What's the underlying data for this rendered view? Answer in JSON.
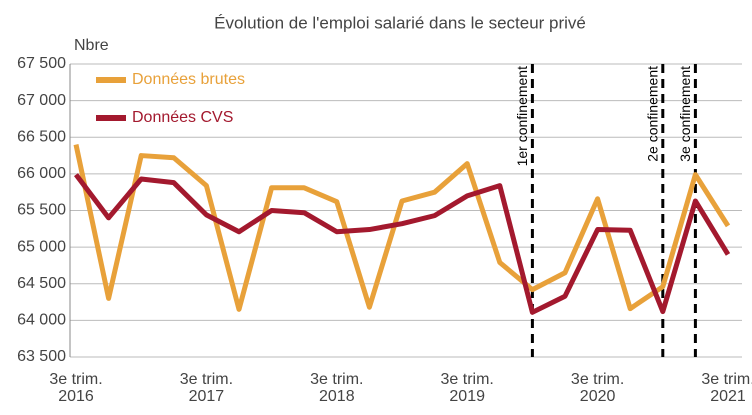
{
  "chart_data": {
    "type": "line",
    "title": "Évolution de l'emploi salarié dans le secteur privé",
    "y_label": "Nbre",
    "categories": [
      "3e trim.\n2016",
      null,
      null,
      null,
      "3e trim.\n2017",
      null,
      null,
      null,
      "3e trim.\n2018",
      null,
      null,
      null,
      "3e trim.\n2019",
      null,
      null,
      null,
      "3e trim.\n2020",
      null,
      null,
      null,
      "3e trim.\n2021"
    ],
    "series": [
      {
        "name": "Données brutes",
        "color": "#e8a13a",
        "values": [
          66400,
          64300,
          66250,
          66220,
          65840,
          64150,
          65810,
          65810,
          65620,
          64180,
          65630,
          65750,
          66140,
          64790,
          64420,
          64650,
          65660,
          64160,
          64460,
          65990,
          65290
        ]
      },
      {
        "name": "Données CVS",
        "color": "#a3192e",
        "values": [
          65990,
          65400,
          65930,
          65880,
          65440,
          65210,
          65500,
          65470,
          65210,
          65240,
          65320,
          65430,
          65700,
          65840,
          64110,
          64330,
          65240,
          65230,
          64120,
          65630,
          64900
        ]
      }
    ],
    "annotations": [
      {
        "text": "1er confinement",
        "at": 14
      },
      {
        "text": "2e confinement",
        "at": 18
      },
      {
        "text": "3e confinement",
        "at": 19
      }
    ],
    "ylim": [
      63500,
      67500
    ],
    "yticks": [
      {
        "value": 63500,
        "label": "63 500"
      },
      {
        "value": 64000,
        "label": "64 000"
      },
      {
        "value": 64500,
        "label": "64 500"
      },
      {
        "value": 65000,
        "label": "65 000"
      },
      {
        "value": 65500,
        "label": "65 500"
      },
      {
        "value": 66000,
        "label": "66 000"
      },
      {
        "value": 66500,
        "label": "66 500"
      },
      {
        "value": 67000,
        "label": "67 000"
      },
      {
        "value": 67500,
        "label": "67 500"
      }
    ],
    "grid": true,
    "legend": "upper left"
  }
}
